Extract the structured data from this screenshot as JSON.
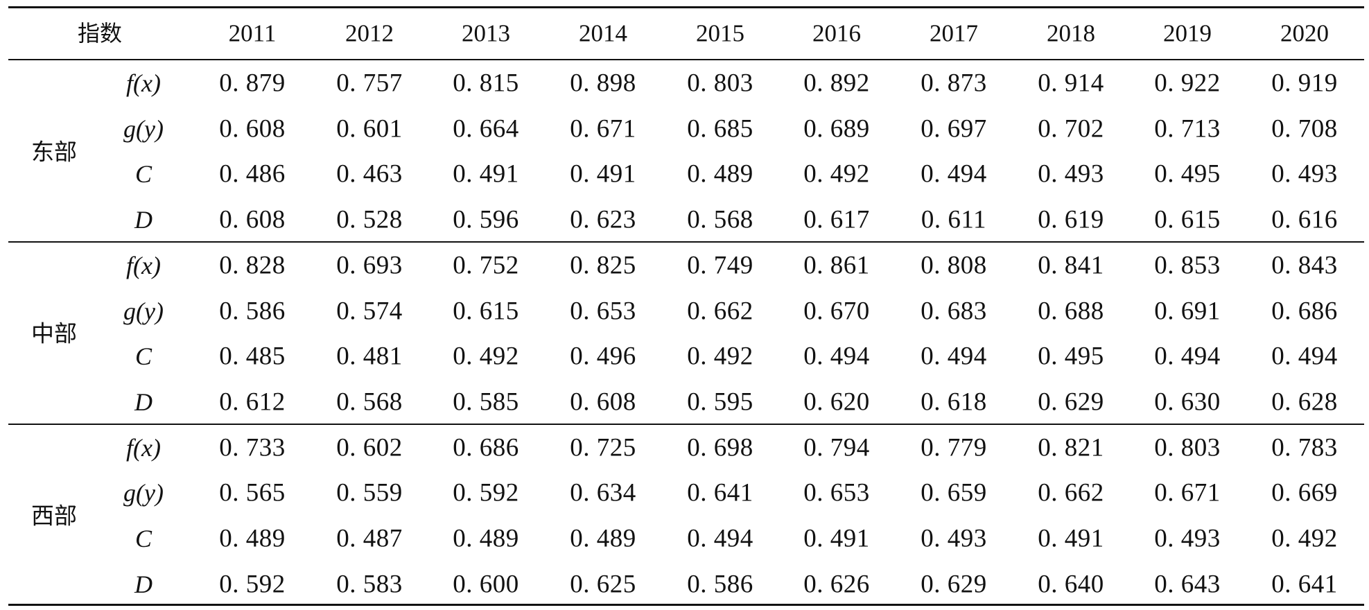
{
  "table": {
    "header_label": "指数",
    "years": [
      "2011",
      "2012",
      "2013",
      "2014",
      "2015",
      "2016",
      "2017",
      "2018",
      "2019",
      "2020"
    ],
    "regions": [
      {
        "name": "东部",
        "rows": [
          {
            "index": "f(x)",
            "values": [
              "0. 879",
              "0. 757",
              "0. 815",
              "0. 898",
              "0. 803",
              "0. 892",
              "0. 873",
              "0. 914",
              "0. 922",
              "0. 919"
            ]
          },
          {
            "index": "g(y)",
            "values": [
              "0. 608",
              "0. 601",
              "0. 664",
              "0. 671",
              "0. 685",
              "0. 689",
              "0. 697",
              "0. 702",
              "0. 713",
              "0. 708"
            ]
          },
          {
            "index": "C",
            "values": [
              "0. 486",
              "0. 463",
              "0. 491",
              "0. 491",
              "0. 489",
              "0. 492",
              "0. 494",
              "0. 493",
              "0. 495",
              "0. 493"
            ]
          },
          {
            "index": "D",
            "values": [
              "0. 608",
              "0. 528",
              "0. 596",
              "0. 623",
              "0. 568",
              "0. 617",
              "0. 611",
              "0. 619",
              "0. 615",
              "0. 616"
            ]
          }
        ]
      },
      {
        "name": "中部",
        "rows": [
          {
            "index": "f(x)",
            "values": [
              "0. 828",
              "0. 693",
              "0. 752",
              "0. 825",
              "0. 749",
              "0. 861",
              "0. 808",
              "0. 841",
              "0. 853",
              "0. 843"
            ]
          },
          {
            "index": "g(y)",
            "values": [
              "0. 586",
              "0. 574",
              "0. 615",
              "0. 653",
              "0. 662",
              "0. 670",
              "0. 683",
              "0. 688",
              "0. 691",
              "0. 686"
            ]
          },
          {
            "index": "C",
            "values": [
              "0. 485",
              "0. 481",
              "0. 492",
              "0. 496",
              "0. 492",
              "0. 494",
              "0. 494",
              "0. 495",
              "0. 494",
              "0. 494"
            ]
          },
          {
            "index": "D",
            "values": [
              "0. 612",
              "0. 568",
              "0. 585",
              "0. 608",
              "0. 595",
              "0. 620",
              "0. 618",
              "0. 629",
              "0. 630",
              "0. 628"
            ]
          }
        ]
      },
      {
        "name": "西部",
        "rows": [
          {
            "index": "f(x)",
            "values": [
              "0. 733",
              "0. 602",
              "0. 686",
              "0. 725",
              "0. 698",
              "0. 794",
              "0. 779",
              "0. 821",
              "0. 803",
              "0. 783"
            ]
          },
          {
            "index": "g(y)",
            "values": [
              "0. 565",
              "0. 559",
              "0. 592",
              "0. 634",
              "0. 641",
              "0. 653",
              "0. 659",
              "0. 662",
              "0. 671",
              "0. 669"
            ]
          },
          {
            "index": "C",
            "values": [
              "0. 489",
              "0. 487",
              "0. 489",
              "0. 489",
              "0. 494",
              "0. 491",
              "0. 493",
              "0. 491",
              "0. 493",
              "0. 492"
            ]
          },
          {
            "index": "D",
            "values": [
              "0. 592",
              "0. 583",
              "0. 600",
              "0. 625",
              "0. 586",
              "0. 626",
              "0. 629",
              "0. 640",
              "0. 643",
              "0. 641"
            ]
          }
        ]
      }
    ]
  }
}
